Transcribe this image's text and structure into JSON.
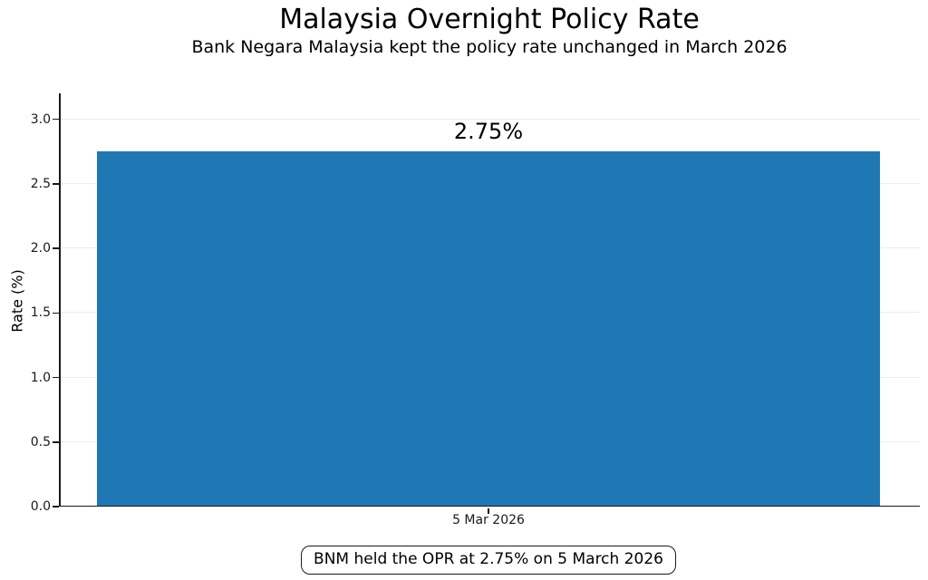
{
  "chart_data": {
    "type": "bar",
    "title": "Malaysia Overnight Policy Rate",
    "subtitle": "Bank Negara Malaysia kept the policy rate unchanged in March 2026",
    "xlabel": "",
    "ylabel": "Rate (%)",
    "categories": [
      "5 Mar 2026"
    ],
    "values": [
      2.75
    ],
    "bar_labels": [
      "2.75%"
    ],
    "yticks": [
      0.0,
      0.5,
      1.0,
      1.5,
      2.0,
      2.5,
      3.0
    ],
    "ylim": [
      0,
      3.2
    ],
    "grid": true,
    "legend": false,
    "bar_color": "#1f77b4",
    "annotation": "BNM held the OPR at 2.75% on 5 March 2026"
  }
}
